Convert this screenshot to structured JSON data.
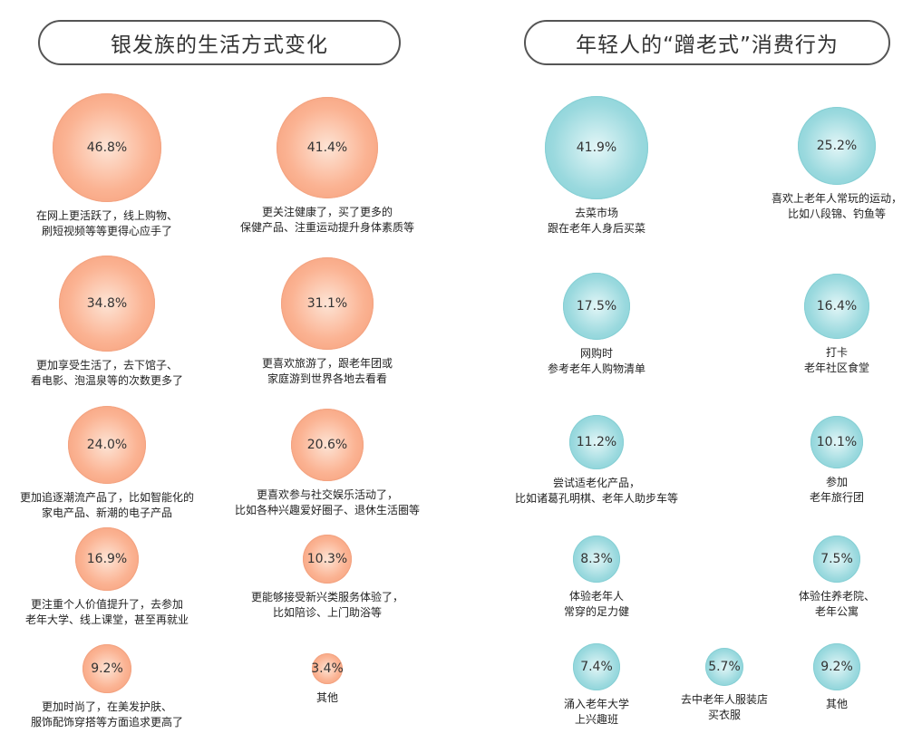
{
  "chart_data": [
    {
      "type": "bubble",
      "title": "银发族的生活方式变化",
      "color": "#f7a582",
      "items": [
        {
          "value_label": "46.8%",
          "value": 46.8,
          "lines": [
            "在网上更活跃了，线上购物、",
            "刷短视频等等更得心应手了"
          ]
        },
        {
          "value_label": "41.4%",
          "value": 41.4,
          "lines": [
            "更关注健康了，买了更多的",
            "保健产品、注重运动提升身体素质等"
          ]
        },
        {
          "value_label": "34.8%",
          "value": 34.8,
          "lines": [
            "更加享受生活了，去下馆子、",
            "看电影、泡温泉等的次数更多了"
          ]
        },
        {
          "value_label": "31.1%",
          "value": 31.1,
          "lines": [
            "更喜欢旅游了，跟老年团或",
            "家庭游到世界各地去看看"
          ]
        },
        {
          "value_label": "24.0%",
          "value": 24.0,
          "lines": [
            "更加追逐潮流产品了，比如智能化的",
            "家电产品、新潮的电子产品"
          ]
        },
        {
          "value_label": "20.6%",
          "value": 20.6,
          "lines": [
            "更喜欢参与社交娱乐活动了，",
            "比如各种兴趣爱好圈子、退休生活圈等"
          ]
        },
        {
          "value_label": "16.9%",
          "value": 16.9,
          "lines": [
            "更注重个人价值提升了，去参加",
            "老年大学、线上课堂，甚至再就业"
          ]
        },
        {
          "value_label": "10.3%",
          "value": 10.3,
          "lines": [
            "更能够接受新兴类服务体验了，",
            "比如陪诊、上门助浴等"
          ]
        },
        {
          "value_label": "9.2%",
          "value": 9.2,
          "lines": [
            "更加时尚了，在美发护肤、",
            "服饰配饰穿搭等方面追求更高了"
          ]
        },
        {
          "value_label": "3.4%",
          "value": 3.4,
          "lines": [
            "其他"
          ]
        }
      ]
    },
    {
      "type": "bubble",
      "title": "年轻人的“蹭老式”消费行为",
      "color": "#8fd5da",
      "items": [
        {
          "value_label": "41.9%",
          "value": 41.9,
          "lines": [
            "去菜市场",
            "跟在老年人身后买菜"
          ]
        },
        {
          "value_label": "25.2%",
          "value": 25.2,
          "lines": [
            "喜欢上老年人常玩的运动，",
            "比如八段锦、钓鱼等"
          ]
        },
        {
          "value_label": "17.5%",
          "value": 17.5,
          "lines": [
            "网购时",
            "参考老年人购物清单"
          ]
        },
        {
          "value_label": "16.4%",
          "value": 16.4,
          "lines": [
            "打卡",
            "老年社区食堂"
          ]
        },
        {
          "value_label": "11.2%",
          "value": 11.2,
          "lines": [
            "尝试适老化产品，",
            "比如诸葛孔明棋、老年人助步车等"
          ]
        },
        {
          "value_label": "10.1%",
          "value": 10.1,
          "lines": [
            "参加",
            "老年旅行团"
          ]
        },
        {
          "value_label": "8.3%",
          "value": 8.3,
          "lines": [
            "体验老年人",
            "常穿的足力健"
          ]
        },
        {
          "value_label": "7.5%",
          "value": 7.5,
          "lines": [
            "体验住养老院、",
            "老年公寓"
          ]
        },
        {
          "value_label": "7.4%",
          "value": 7.4,
          "lines": [
            "涌入老年大学",
            "上兴趣班"
          ]
        },
        {
          "value_label": "5.7%",
          "value": 5.7,
          "lines": [
            "去中老年人服装店",
            "买衣服"
          ]
        },
        {
          "value_label": "9.2%",
          "value": 9.2,
          "lines": [
            "其他"
          ]
        }
      ]
    }
  ]
}
